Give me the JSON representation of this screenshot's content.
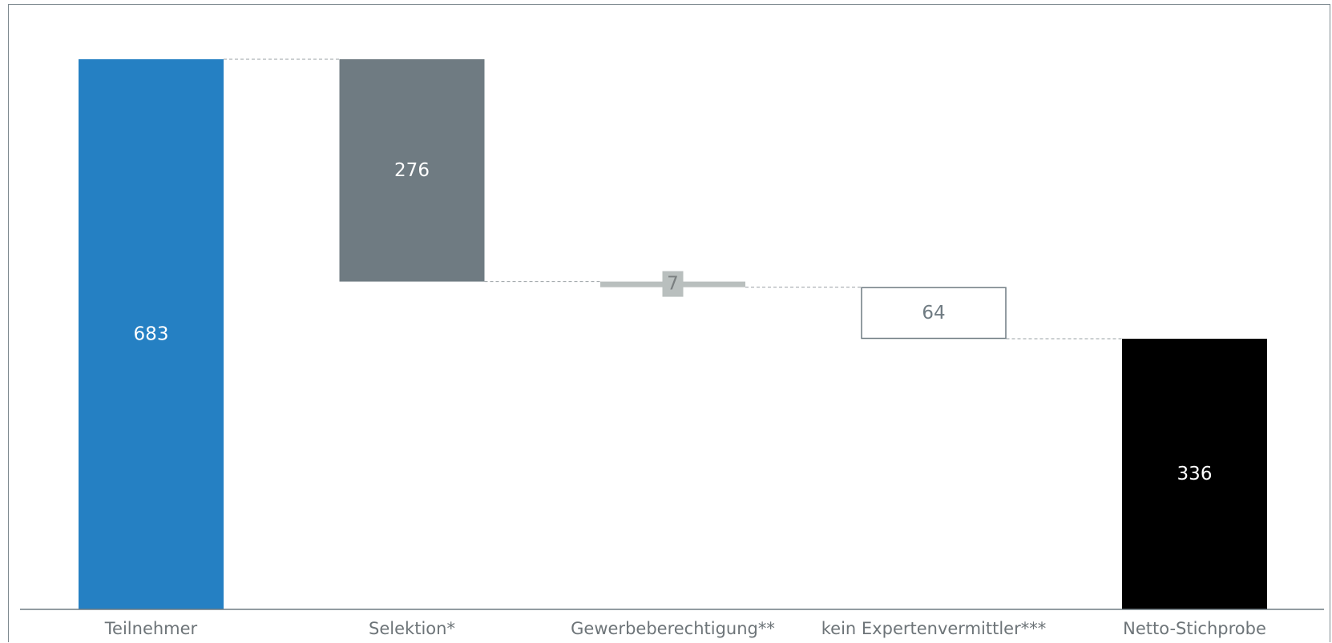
{
  "chart_data": {
    "type": "bar",
    "subtype": "waterfall",
    "title": "",
    "xlabel": "",
    "ylabel": "",
    "ylim": [
      0,
      683
    ],
    "grid": false,
    "legend": "none",
    "categories": [
      "Teilnehmer",
      "Selektion*",
      "Gewerbeberechtigung**",
      "kein Expertenvermittler***",
      "Netto-Stichprobe"
    ],
    "steps": [
      {
        "category": "Teilnehmer",
        "kind": "total",
        "value": 683,
        "label": "683",
        "color": "#2580c3",
        "label_color": "#ffffff"
      },
      {
        "category": "Selektion*",
        "kind": "decrease",
        "value": 276,
        "label": "276",
        "color": "#6f7b82",
        "label_color": "#ffffff"
      },
      {
        "category": "Gewerbeberechtigung**",
        "kind": "decrease",
        "value": 7,
        "label": "7",
        "color": "#b9bfbe",
        "label_color": "#7a7f80"
      },
      {
        "category": "kein Expertenvermittler***",
        "kind": "decrease",
        "value": 64,
        "label": "64",
        "color": "#ffffff",
        "border": "#6f7b82",
        "label_color": "#6f7b82"
      },
      {
        "category": "Netto-Stichprobe",
        "kind": "total",
        "value": 336,
        "label": "336",
        "color": "#000000",
        "label_color": "#ffffff"
      }
    ]
  }
}
